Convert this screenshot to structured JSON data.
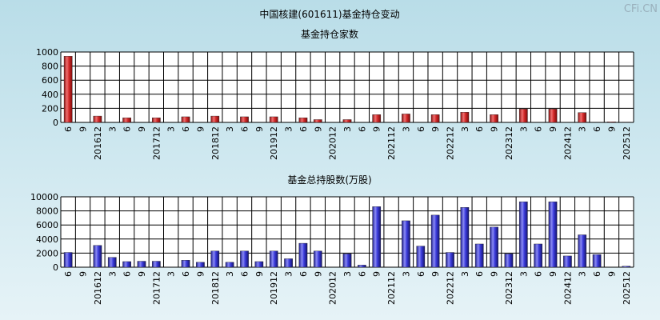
{
  "page_title": "中国核建(601611)基金持仓变动",
  "watermark": "CFi.CN",
  "chart_data": [
    {
      "type": "bar",
      "title": "基金持仓家数",
      "categories": [
        "6",
        "9",
        "201612",
        "3",
        "6",
        "9",
        "201712",
        "3",
        "6",
        "9",
        "201812",
        "3",
        "6",
        "9",
        "201912",
        "3",
        "6",
        "9",
        "202012",
        "3",
        "6",
        "9",
        "202112",
        "3",
        "6",
        "9",
        "202212",
        "3",
        "6",
        "9",
        "202312",
        "3",
        "6",
        "9",
        "202412",
        "3",
        "6",
        "9",
        "202512"
      ],
      "values": [
        940,
        0,
        90,
        0,
        65,
        0,
        65,
        0,
        80,
        0,
        90,
        0,
        80,
        0,
        80,
        0,
        65,
        40,
        0,
        40,
        0,
        110,
        0,
        120,
        0,
        110,
        0,
        145,
        0,
        110,
        0,
        190,
        0,
        190,
        0,
        140,
        0,
        8,
        5
      ],
      "ylim": [
        0,
        1000
      ],
      "yticks": [
        0,
        200,
        400,
        600,
        800,
        1000
      ],
      "bar_color": "#d42a2a"
    },
    {
      "type": "bar",
      "title": "基金总持股数(万股)",
      "categories": [
        "6",
        "9",
        "201612",
        "3",
        "6",
        "9",
        "201712",
        "3",
        "6",
        "9",
        "201812",
        "3",
        "6",
        "9",
        "201912",
        "3",
        "6",
        "9",
        "202012",
        "3",
        "6",
        "9",
        "202112",
        "3",
        "6",
        "9",
        "202212",
        "3",
        "6",
        "9",
        "202312",
        "3",
        "6",
        "9",
        "202412",
        "3",
        "6",
        "9",
        "202512"
      ],
      "values": [
        2100,
        0,
        3100,
        1400,
        800,
        850,
        850,
        0,
        1000,
        700,
        2300,
        700,
        2300,
        800,
        2300,
        1200,
        3400,
        2300,
        0,
        1900,
        300,
        8600,
        0,
        6600,
        3000,
        7400,
        2100,
        8500,
        3300,
        5700,
        1900,
        9300,
        3300,
        9300,
        1600,
        4600,
        1800,
        0,
        150
      ],
      "ylim": [
        0,
        10000
      ],
      "yticks": [
        0,
        2000,
        4000,
        6000,
        8000,
        10000
      ],
      "bar_color": "#3b3bdc"
    }
  ]
}
